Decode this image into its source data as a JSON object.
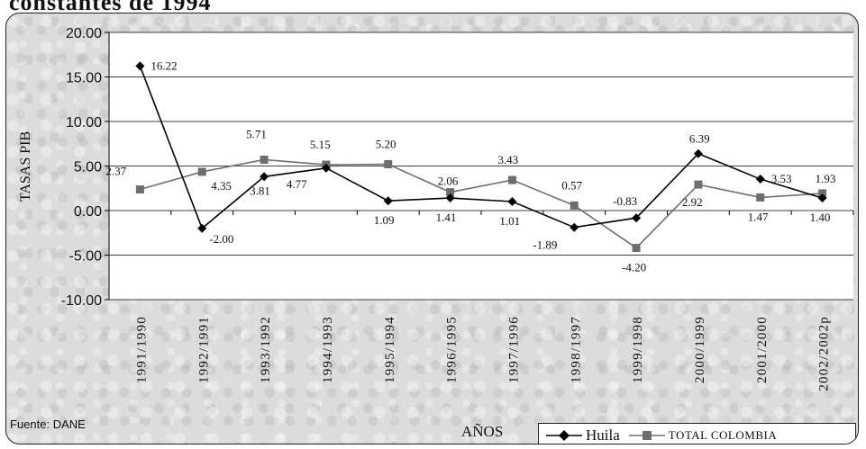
{
  "header": {
    "title_fragment": "constantes de 1994"
  },
  "source": "Fuente: DANE",
  "colors": {
    "huila": "#000000",
    "colombia": "#6e6e6e",
    "gridline": "#000000"
  },
  "chart_data": {
    "type": "line",
    "title": "",
    "xlabel": "AÑOS",
    "ylabel": "TASAS PIB",
    "ylim": [
      -10,
      20
    ],
    "yticks": [
      -10,
      -5,
      0,
      5,
      10,
      15,
      20
    ],
    "ytick_labels": [
      "-10.00",
      "-5.00",
      "0.00",
      "5.00",
      "10.00",
      "15.00",
      "20.00"
    ],
    "grid": true,
    "legend_position": "bottom-right",
    "categories": [
      "1991/1990",
      "1992/1991",
      "1993/1992",
      "1994/1993",
      "1995/1994",
      "1996/1995",
      "1997/1996",
      "1998/1997",
      "1999/1998",
      "2000/1999",
      "2001/2000",
      "2002/2002p"
    ],
    "series": [
      {
        "name": "Huila",
        "marker": "diamond",
        "values": [
          16.22,
          -2.0,
          3.81,
          4.77,
          1.09,
          1.41,
          1.01,
          -1.89,
          -0.83,
          6.39,
          3.53,
          1.4
        ],
        "labels": [
          "16.22",
          "-2.00",
          "3.81",
          "4.77",
          "1.09",
          "1.41",
          "1.01",
          "-1.89",
          "-0.83",
          "6.39",
          "3.53",
          "1.40"
        ]
      },
      {
        "name": "TOTAL COLOMBIA",
        "marker": "square",
        "values": [
          2.37,
          4.35,
          5.71,
          5.15,
          5.2,
          2.06,
          3.43,
          0.57,
          -4.2,
          2.92,
          1.47,
          1.93
        ],
        "labels": [
          "2.37",
          "4.35",
          "5.71",
          "5.15",
          "5.20",
          "2.06",
          "3.43",
          "0.57",
          "-4.20",
          "2.92",
          "1.47",
          "1.93"
        ]
      }
    ]
  }
}
